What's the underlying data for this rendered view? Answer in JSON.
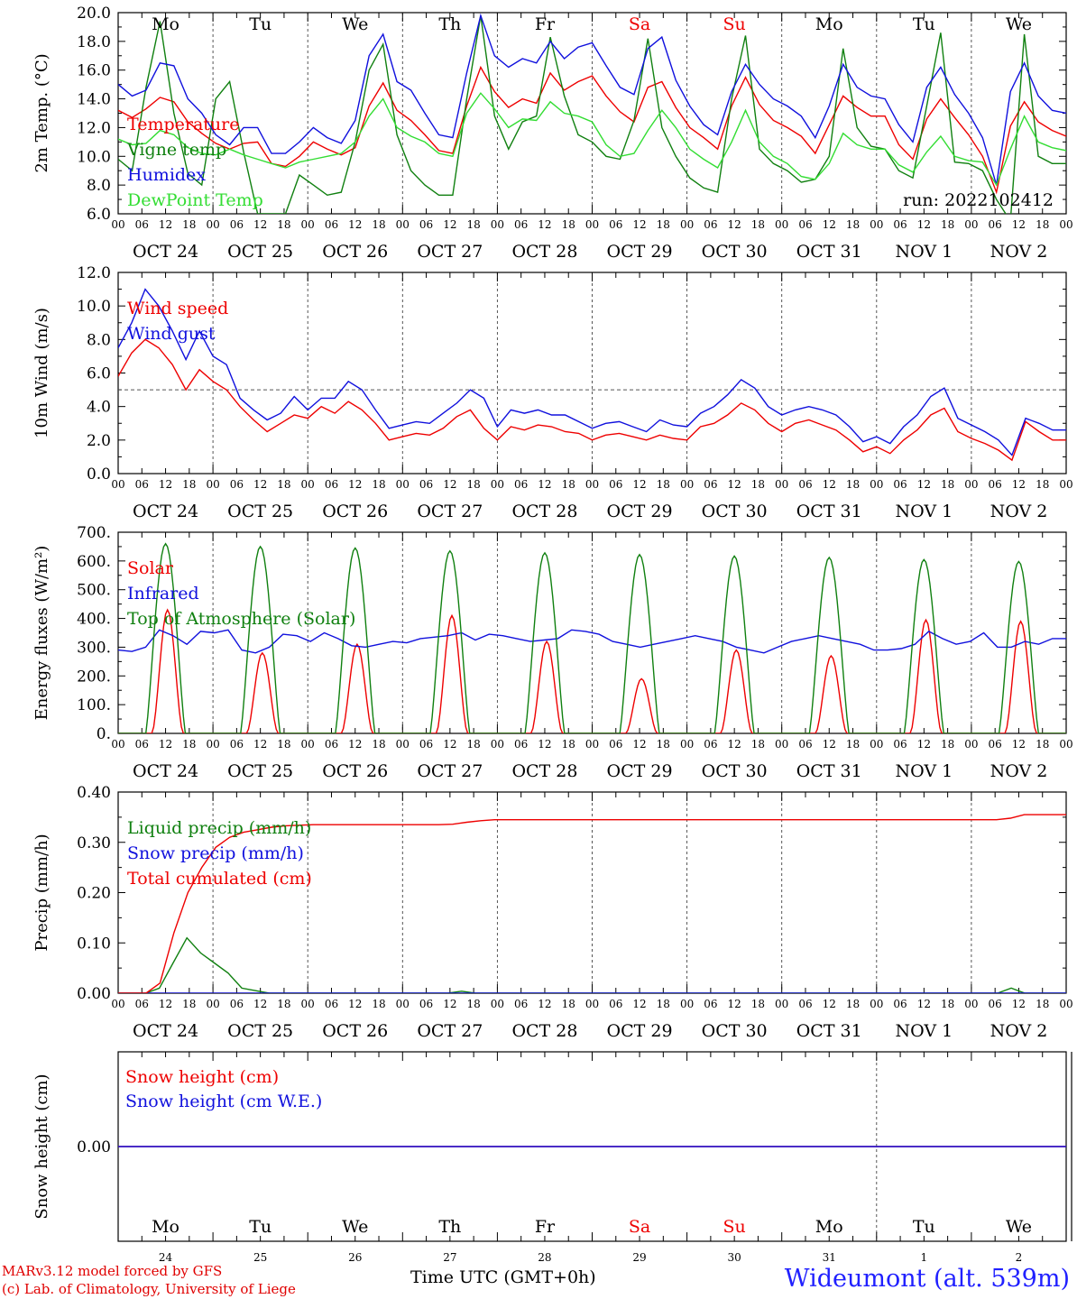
{
  "chart_data": [
    {
      "type": "line",
      "ylabel": "2m Temp. (°C)",
      "ylim": [
        6.0,
        20.0
      ],
      "yticks": [
        "6.0",
        "8.0",
        "10.0",
        "12.0",
        "14.0",
        "16.0",
        "18.0",
        "20.0"
      ],
      "x_start": "OCT 24 00 UTC",
      "x_step_hours": 6,
      "day_labels": [
        "Mo",
        "Tu",
        "We",
        "Th",
        "Fr",
        "Sa",
        "Su",
        "Mo",
        "Tu",
        "We"
      ],
      "annotation": "run: 2022102412",
      "series": [
        {
          "name": "Temperature",
          "color": "#ee0000",
          "values": [
            13.2,
            12.7,
            13.3,
            14.1,
            13.8,
            12.4,
            11.6,
            10.9,
            10.5,
            10.9,
            11.0,
            9.5,
            9.3,
            10.0,
            11.0,
            10.5,
            10.1,
            10.6,
            13.5,
            15.1,
            13.2,
            12.5,
            11.5,
            10.4,
            10.2,
            13.5,
            16.2,
            14.5,
            13.4,
            14.0,
            13.7,
            15.8,
            14.6,
            15.2,
            15.6,
            14.2,
            13.1,
            12.4,
            14.8,
            15.2,
            13.4,
            12.0,
            11.3,
            10.5,
            13.5,
            15.5,
            13.6,
            12.5,
            12.0,
            11.4,
            10.2,
            12.2,
            14.2,
            13.4,
            12.8,
            12.8,
            10.8,
            9.8,
            12.6,
            14.0,
            12.7,
            11.5,
            10.0,
            7.5,
            12.1,
            13.8,
            12.4,
            11.8,
            11.4
          ]
        },
        {
          "name": "Vigne temp",
          "color": "#108010",
          "values": [
            9.8,
            9.0,
            14.8,
            19.4,
            13.0,
            8.8,
            8.0,
            14.0,
            15.2,
            10.3,
            6.0,
            6.0,
            6.0,
            8.7,
            8.0,
            7.3,
            7.5,
            11.0,
            16.0,
            17.8,
            11.5,
            9.0,
            8.0,
            7.3,
            7.3,
            14.0,
            19.8,
            12.8,
            10.5,
            12.4,
            12.8,
            18.3,
            14.2,
            11.5,
            11.0,
            10.0,
            9.8,
            12.5,
            18.2,
            12.0,
            10.0,
            8.5,
            7.8,
            7.5,
            14.0,
            18.4,
            10.5,
            9.5,
            9.0,
            8.2,
            8.4,
            10.0,
            17.5,
            12.0,
            10.7,
            10.5,
            9.0,
            8.5,
            13.5,
            18.6,
            9.6,
            9.5,
            9.0,
            7.0,
            5.5,
            18.5,
            10.0,
            9.5,
            9.5
          ]
        },
        {
          "name": "Humidex",
          "color": "#1010dd",
          "values": [
            15.0,
            14.2,
            14.6,
            16.5,
            16.3,
            14.0,
            13.0,
            11.5,
            10.8,
            12.0,
            12.0,
            10.2,
            10.2,
            11.0,
            12.0,
            11.3,
            10.9,
            12.5,
            17.0,
            18.5,
            15.2,
            14.6,
            13.0,
            11.5,
            11.3,
            15.8,
            19.8,
            17.0,
            16.2,
            16.8,
            16.5,
            18.0,
            16.8,
            17.6,
            17.9,
            16.3,
            14.8,
            14.3,
            17.5,
            18.3,
            15.3,
            13.5,
            12.2,
            11.5,
            14.5,
            16.4,
            15.0,
            14.0,
            13.5,
            12.8,
            11.3,
            13.5,
            16.4,
            14.8,
            14.2,
            14.0,
            12.2,
            11.0,
            14.8,
            16.2,
            14.3,
            13.0,
            11.3,
            8.0,
            14.5,
            16.5,
            14.2,
            13.2,
            13.0
          ]
        },
        {
          "name": "DewPoint Temp",
          "color": "#33dd33",
          "values": [
            11.2,
            10.8,
            10.9,
            11.8,
            11.5,
            10.6,
            10.2,
            10.1,
            10.5,
            10.1,
            9.8,
            9.5,
            9.2,
            9.6,
            9.8,
            10.0,
            10.2,
            11.0,
            12.8,
            14.0,
            12.0,
            11.4,
            11.0,
            10.2,
            10.0,
            13.0,
            14.4,
            13.3,
            12.0,
            12.6,
            12.5,
            13.8,
            13.0,
            12.8,
            12.4,
            10.8,
            10.0,
            10.2,
            11.8,
            13.2,
            12.0,
            10.5,
            9.8,
            9.2,
            11.0,
            13.2,
            11.0,
            10.0,
            9.5,
            8.6,
            8.4,
            9.5,
            11.6,
            10.8,
            10.5,
            10.5,
            9.4,
            8.9,
            10.3,
            11.4,
            10.0,
            9.7,
            9.6,
            8.0,
            10.5,
            12.8,
            11.0,
            10.6,
            10.4
          ]
        }
      ]
    },
    {
      "type": "line",
      "ylabel": "10m Wind (m/s)",
      "ylim": [
        0.0,
        12.0
      ],
      "yticks": [
        "0.0",
        "2.0",
        "4.0",
        "6.0",
        "8.0",
        "10.0",
        "12.0"
      ],
      "reference_line": 5.0,
      "series": [
        {
          "name": "Wind speed",
          "color": "#ee0000",
          "values": [
            5.8,
            7.2,
            8.0,
            7.5,
            6.5,
            5.0,
            6.2,
            5.5,
            5.0,
            4.0,
            3.2,
            2.5,
            3.0,
            3.5,
            3.3,
            4.0,
            3.6,
            4.3,
            3.8,
            3.0,
            2.0,
            2.2,
            2.4,
            2.3,
            2.7,
            3.4,
            3.8,
            2.7,
            2.0,
            2.8,
            2.6,
            2.9,
            2.8,
            2.5,
            2.4,
            2.0,
            2.3,
            2.4,
            2.2,
            2.0,
            2.3,
            2.1,
            2.0,
            2.8,
            3.0,
            3.5,
            4.2,
            3.8,
            3.0,
            2.5,
            3.0,
            3.2,
            2.9,
            2.6,
            2.0,
            1.3,
            1.6,
            1.2,
            2.0,
            2.6,
            3.5,
            3.9,
            2.5,
            2.1,
            1.8,
            1.4,
            0.8,
            3.1,
            2.5,
            2.0,
            2.0
          ]
        },
        {
          "name": "Wind gust",
          "color": "#1010dd",
          "values": [
            7.5,
            9.0,
            11.0,
            10.0,
            8.5,
            6.8,
            8.5,
            7.0,
            6.5,
            4.5,
            3.8,
            3.2,
            3.6,
            4.6,
            3.8,
            4.5,
            4.5,
            5.5,
            5.0,
            3.8,
            2.7,
            2.9,
            3.1,
            3.0,
            3.6,
            4.2,
            5.0,
            4.5,
            2.8,
            3.8,
            3.6,
            3.8,
            3.5,
            3.5,
            3.1,
            2.7,
            3.0,
            3.1,
            2.8,
            2.5,
            3.2,
            2.9,
            2.8,
            3.6,
            4.0,
            4.7,
            5.6,
            5.1,
            4.0,
            3.5,
            3.8,
            4.0,
            3.8,
            3.5,
            2.8,
            1.9,
            2.2,
            1.8,
            2.8,
            3.5,
            4.6,
            5.1,
            3.3,
            2.9,
            2.5,
            2.0,
            1.1,
            3.3,
            3.0,
            2.6,
            2.6
          ]
        }
      ]
    },
    {
      "type": "line",
      "ylabel": "Energy fluxes (W/m²)",
      "ylim": [
        0,
        700
      ],
      "yticks": [
        "0.",
        "100.",
        "200.",
        "300.",
        "400.",
        "500.",
        "600.",
        "700."
      ],
      "series": [
        {
          "name": "Solar",
          "color": "#ee0000",
          "peaks": [
            430,
            280,
            310,
            410,
            320,
            190,
            290,
            270,
            395,
            390
          ]
        },
        {
          "name": "Infrared",
          "color": "#1010dd",
          "values": [
            290,
            285,
            300,
            360,
            340,
            310,
            355,
            350,
            360,
            290,
            280,
            300,
            345,
            340,
            320,
            350,
            330,
            305,
            300,
            310,
            320,
            315,
            330,
            335,
            340,
            350,
            325,
            345,
            340,
            330,
            320,
            325,
            330,
            360,
            355,
            345,
            320,
            310,
            300,
            310,
            320,
            330,
            340,
            330,
            320,
            300,
            290,
            280,
            300,
            320,
            330,
            340,
            330,
            320,
            310,
            290,
            290,
            295,
            310,
            355,
            330,
            310,
            320,
            350,
            300,
            300,
            320,
            310,
            330,
            330
          ]
        },
        {
          "name": "Top of Atmosphere (Solar)",
          "color": "#108010",
          "peaks": [
            660,
            650,
            645,
            635,
            628,
            622,
            617,
            612,
            605,
            598
          ]
        }
      ]
    },
    {
      "type": "line",
      "ylabel": "Precip (mm/h)",
      "ylim": [
        0.0,
        0.4
      ],
      "yticks": [
        "0.00",
        "0.10",
        "0.20",
        "0.30",
        "0.40"
      ],
      "series": [
        {
          "name": "Liquid precip (mm/h)",
          "color": "#108010",
          "values": [
            0,
            0,
            0,
            0.01,
            0.06,
            0.11,
            0.08,
            0.06,
            0.04,
            0.01,
            0.005,
            0,
            0,
            0,
            0,
            0,
            0,
            0,
            0,
            0,
            0,
            0,
            0,
            0,
            0,
            0.004,
            0,
            0,
            0,
            0,
            0,
            0,
            0,
            0,
            0,
            0,
            0,
            0,
            0,
            0,
            0,
            0,
            0,
            0,
            0,
            0,
            0,
            0,
            0,
            0,
            0,
            0,
            0,
            0,
            0,
            0,
            0,
            0,
            0,
            0,
            0,
            0,
            0,
            0,
            0,
            0.01,
            0,
            0,
            0,
            0
          ]
        },
        {
          "name": "Snow precip (mm/h)",
          "color": "#1010dd",
          "values": []
        },
        {
          "name": "Total cumulated (cm)",
          "color": "#ee0000",
          "values": [
            0,
            0,
            0,
            0.02,
            0.12,
            0.2,
            0.25,
            0.29,
            0.31,
            0.32,
            0.325,
            0.33,
            0.333,
            0.334,
            0.335,
            0.335,
            0.335,
            0.335,
            0.335,
            0.335,
            0.335,
            0.335,
            0.335,
            0.335,
            0.336,
            0.34,
            0.343,
            0.345,
            0.345,
            0.345,
            0.345,
            0.345,
            0.345,
            0.345,
            0.345,
            0.345,
            0.345,
            0.345,
            0.345,
            0.345,
            0.345,
            0.345,
            0.345,
            0.345,
            0.345,
            0.345,
            0.345,
            0.345,
            0.345,
            0.345,
            0.345,
            0.345,
            0.345,
            0.345,
            0.345,
            0.345,
            0.345,
            0.345,
            0.345,
            0.345,
            0.345,
            0.345,
            0.345,
            0.345,
            0.348,
            0.355,
            0.355,
            0.355,
            0.355
          ]
        }
      ]
    },
    {
      "type": "line",
      "ylabel": "Snow height (cm)",
      "ylim": [
        -0.01,
        0.01
      ],
      "yticks": [
        "0.00"
      ],
      "series": [
        {
          "name": "Snow height (cm)",
          "color": "#ee0000",
          "values": [
            0,
            0
          ]
        },
        {
          "name": "Snow height (cm W.E.)",
          "color": "#1010dd",
          "values": [
            0,
            0
          ]
        }
      ]
    }
  ],
  "x_axis": {
    "hour_ticks": [
      "00",
      "06",
      "12",
      "18"
    ],
    "end_tick": "00",
    "date_labels": [
      "OCT 24",
      "OCT 25",
      "OCT 26",
      "OCT 27",
      "OCT 28",
      "OCT 29",
      "OCT 30",
      "OCT 31",
      "NOV  1",
      "NOV  2"
    ],
    "weekday_labels": [
      "Mo",
      "Tu",
      "We",
      "Th",
      "Fr",
      "Sa",
      "Su",
      "Mo",
      "Tu",
      "We"
    ],
    "day_numbers": [
      "24",
      "25",
      "26",
      "27",
      "28",
      "29",
      "30",
      "31",
      "1",
      "2"
    ],
    "weekend_color": "#ee0000",
    "weekday_color": "#000000"
  },
  "footer": {
    "model": "MARv3.12 model forced by GFS",
    "credit": "(c) Lab. of Climatology, University of Liege",
    "time_label": "Time UTC (GMT+0h)",
    "station": "Wideumont (alt. 539m)"
  }
}
